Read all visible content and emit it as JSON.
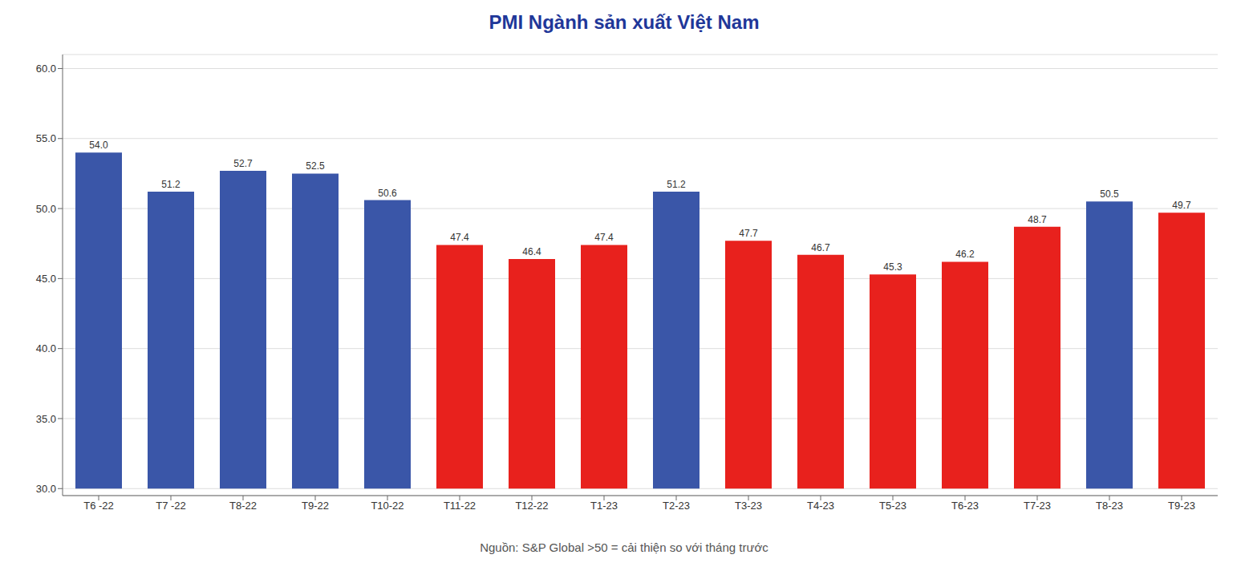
{
  "chart_data": {
    "type": "bar",
    "title": "PMI Ngành sản xuất Việt Nam",
    "subtitle": "Nguồn: S&P Global >50 = cải thiện so với tháng trước",
    "categories": [
      "T6 -22",
      "T7 -22",
      "T8-22",
      "T9-22",
      "T10-22",
      "T11-22",
      "T12-22",
      "T1-23",
      "T2-23",
      "T3-23",
      "T4-23",
      "T5-23",
      "T6-23",
      "T7-23",
      "T8-23",
      "T9-23"
    ],
    "values": [
      54.0,
      51.2,
      52.7,
      52.5,
      50.6,
      47.4,
      46.4,
      47.4,
      51.2,
      47.7,
      46.7,
      45.3,
      46.2,
      48.7,
      50.5,
      49.7
    ],
    "value_labels": [
      "54.0",
      "51.2",
      "52.7",
      "52.5",
      "50.6",
      "47.4",
      "46.4",
      "47.4",
      "51.2",
      "47.7",
      "46.7",
      "45.3",
      "46.2",
      "48.7",
      "50.5",
      "49.7"
    ],
    "data_labels": true,
    "colors": [
      "#3a56a8",
      "#3a56a8",
      "#3a56a8",
      "#3a56a8",
      "#3a56a8",
      "#e8211d",
      "#e8211d",
      "#e8211d",
      "#3a56a8",
      "#e8211d",
      "#e8211d",
      "#e8211d",
      "#e8211d",
      "#e8211d",
      "#3a56a8",
      "#e8211d"
    ],
    "bar_bottom": 30.0,
    "ylim": [
      29.5,
      61.0
    ],
    "yticks": [
      {
        "value": 30.0,
        "label": "30.0"
      },
      {
        "value": 35.0,
        "label": "35.0"
      },
      {
        "value": 40.0,
        "label": "40.0"
      },
      {
        "value": 45.0,
        "label": "45.0"
      },
      {
        "value": 50.0,
        "label": "50.0"
      },
      {
        "value": 55.0,
        "label": "55.0"
      },
      {
        "value": 60.0,
        "label": "60.0"
      }
    ],
    "grid": true
  }
}
